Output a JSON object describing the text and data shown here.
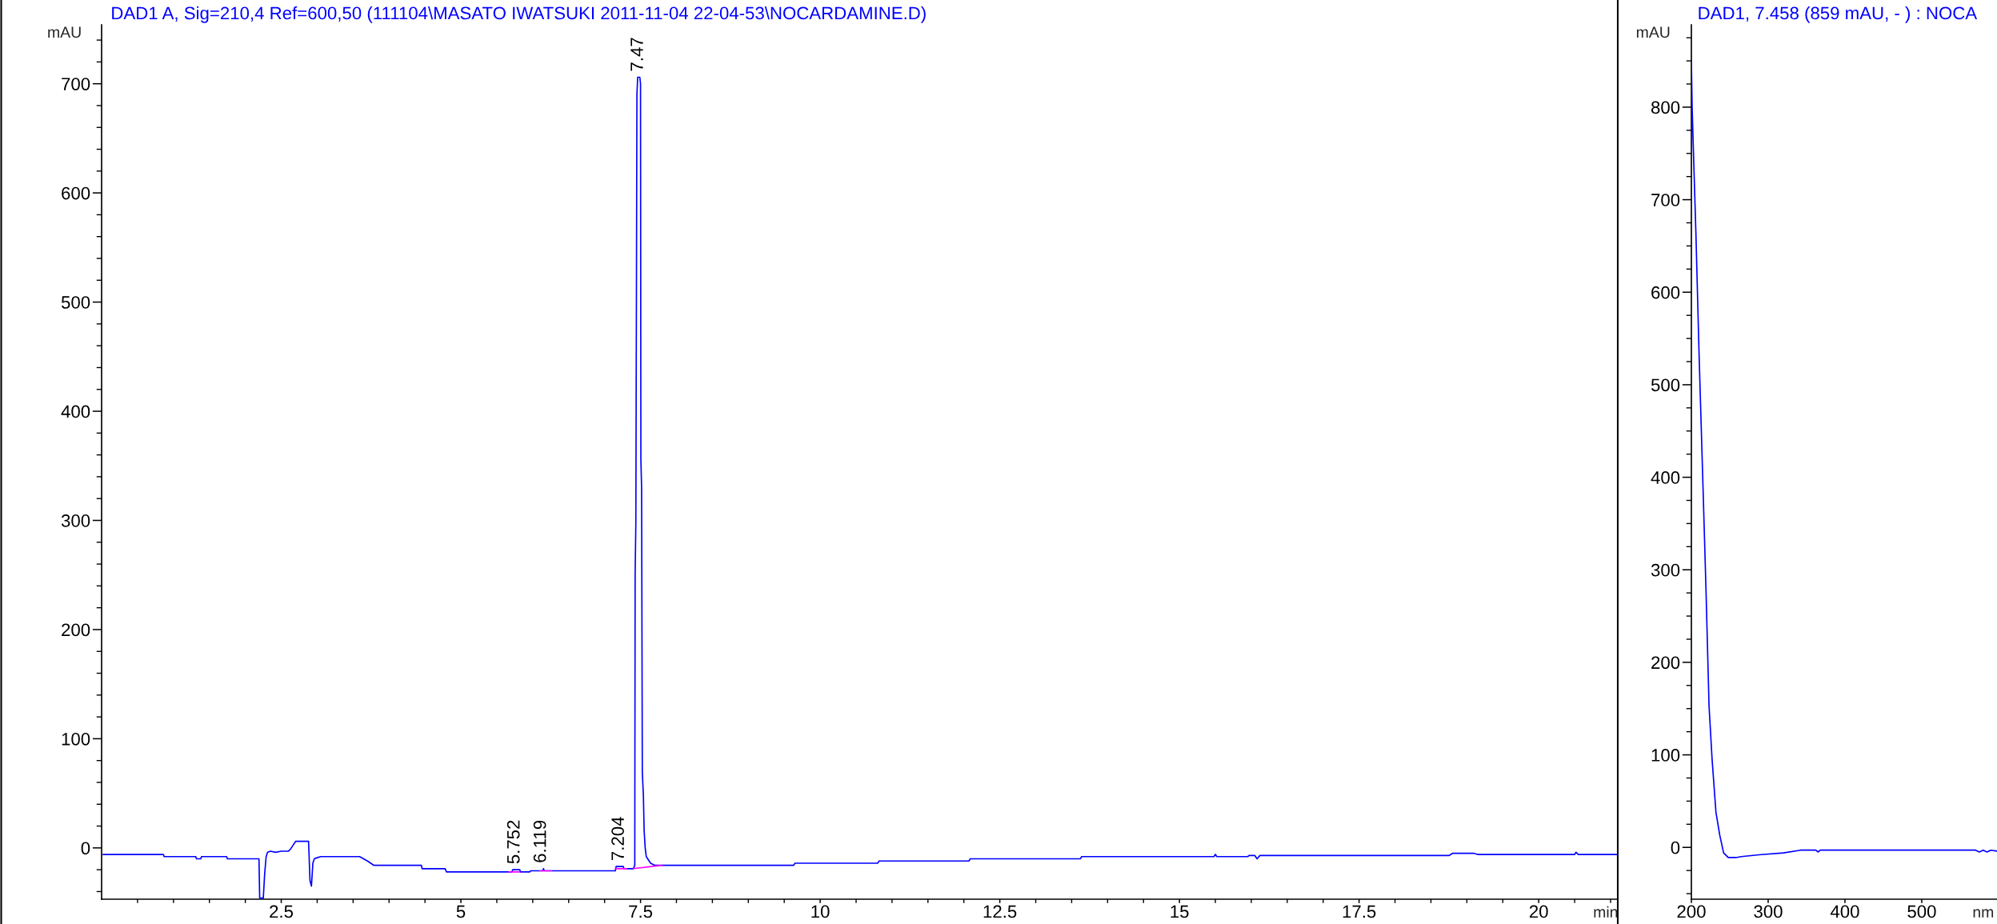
{
  "chart_data": [
    {
      "type": "line",
      "title": "DAD1 A, Sig=210,4 Ref=600,50 (111104\\MASATO IWATSUKI 2011-11-04 22-04-53\\NOCARDAMINE.D)",
      "xlabel": "min",
      "ylabel": "mAU",
      "series": [
        {
          "color": "#0000ff",
          "x": [
            0.02,
            0.86,
            0.87,
            1.31,
            1.32,
            1.38,
            1.39,
            1.74,
            1.75,
            2.19,
            2.2,
            2.25,
            2.27,
            2.29,
            2.31,
            2.35,
            2.42,
            2.5,
            2.6,
            2.63,
            2.66,
            2.7,
            2.88,
            2.9,
            2.92,
            2.94,
            2.96,
            3.0,
            3.05,
            3.1,
            3.59,
            3.7,
            3.79,
            4.45,
            4.46,
            4.78,
            4.8,
            5.07,
            5.08,
            5.71,
            5.72,
            5.82,
            5.83,
            5.96,
            5.97,
            6.14,
            6.15,
            6.16,
            7.15,
            7.16,
            7.26,
            7.27,
            7.4,
            7.42,
            7.425,
            7.435,
            7.45,
            7.46,
            7.49,
            7.5,
            7.505,
            7.515,
            7.525,
            7.54,
            7.55,
            7.565,
            7.58,
            7.64,
            7.7,
            9.63,
            9.65,
            10.8,
            10.82,
            12.07,
            12.09,
            13.62,
            13.64,
            15.48,
            15.5,
            15.52,
            15.95,
            15.97,
            16.05,
            16.08,
            16.12,
            18.75,
            18.8,
            19.1,
            19.15,
            19.3,
            20.5,
            20.52,
            20.55,
            21.1
          ],
          "values": [
            -6,
            -6,
            -8,
            -8,
            -10,
            -10,
            -8,
            -8,
            -10,
            -10,
            -46,
            -46,
            -23,
            -8,
            -4,
            -3,
            -4,
            -3,
            -3,
            -1,
            2,
            6,
            6,
            -30,
            -35,
            -14,
            -10,
            -9,
            -8,
            -8,
            -8,
            -12,
            -16,
            -16,
            -19,
            -19,
            -22,
            -22,
            -22,
            -22,
            -20,
            -20,
            -22,
            -22,
            -21,
            -21,
            -19,
            -21,
            -21,
            -17,
            -17,
            -19,
            -19,
            -16,
            250,
            298,
            690,
            706,
            706,
            700,
            356,
            330,
            69,
            48,
            16,
            0,
            -8,
            -14,
            -16,
            -16,
            -14,
            -14,
            -12,
            -12,
            -10,
            -10,
            -8,
            -8,
            -6,
            -8,
            -8,
            -7,
            -7,
            -10,
            -7,
            -7,
            -5,
            -5,
            -6,
            -6,
            -6,
            -4,
            -6,
            -6
          ]
        },
        {
          "color": "#ff00ff",
          "x": [
            5.67,
            5.82,
            5.95,
            6.1,
            6.26,
            6.7,
            7.15,
            7.31,
            7.35,
            7.4,
            7.8
          ],
          "values": [
            -22,
            -22,
            null,
            -21,
            -21,
            null,
            -19,
            -19,
            null,
            -19,
            -16
          ]
        }
      ],
      "xlim": [
        0,
        21.1
      ],
      "ylim": [
        -47,
        754
      ],
      "xticks": [
        {
          "value": 0.5,
          "label": null
        },
        {
          "value": 1,
          "label": null
        },
        {
          "value": 1.5,
          "label": null
        },
        {
          "value": 2,
          "label": null
        },
        2.5,
        {
          "value": 3,
          "label": null
        },
        {
          "value": 3.5,
          "label": null
        },
        {
          "value": 4,
          "label": null
        },
        {
          "value": 4.5,
          "label": null
        },
        5,
        {
          "value": 5.5,
          "label": null
        },
        {
          "value": 6,
          "label": null
        },
        {
          "value": 6.5,
          "label": null
        },
        {
          "value": 7,
          "label": null
        },
        7.5,
        {
          "value": 8,
          "label": null
        },
        {
          "value": 8.5,
          "label": null
        },
        {
          "value": 9,
          "label": null
        },
        {
          "value": 9.5,
          "label": null
        },
        10,
        {
          "value": 10.5,
          "label": null
        },
        {
          "value": 11,
          "label": null
        },
        {
          "value": 11.5,
          "label": null
        },
        {
          "value": 12,
          "label": null
        },
        12.5,
        {
          "value": 13,
          "label": null
        },
        {
          "value": 13.5,
          "label": null
        },
        {
          "value": 14,
          "label": null
        },
        {
          "value": 14.5,
          "label": null
        },
        15,
        {
          "value": 15.5,
          "label": null
        },
        {
          "value": 16,
          "label": null
        },
        {
          "value": 16.5,
          "label": null
        },
        {
          "value": 17,
          "label": null
        },
        17.5,
        {
          "value": 18,
          "label": null
        },
        {
          "value": 18.5,
          "label": null
        },
        {
          "value": 19,
          "label": null
        },
        {
          "value": 19.5,
          "label": null
        },
        20,
        {
          "value": 20.5,
          "label": null
        },
        {
          "value": 21,
          "label": null
        }
      ],
      "yticks": [
        {
          "value": -40,
          "label": null
        },
        {
          "value": -20,
          "label": null
        },
        0,
        {
          "value": 20,
          "label": null
        },
        {
          "value": 40,
          "label": null
        },
        {
          "value": 60,
          "label": null
        },
        {
          "value": 80,
          "label": null
        },
        100,
        {
          "value": 120,
          "label": null
        },
        {
          "value": 140,
          "label": null
        },
        {
          "value": 160,
          "label": null
        },
        {
          "value": 180,
          "label": null
        },
        200,
        {
          "value": 220,
          "label": null
        },
        {
          "value": 240,
          "label": null
        },
        {
          "value": 260,
          "label": null
        },
        {
          "value": 280,
          "label": null
        },
        300,
        {
          "value": 320,
          "label": null
        },
        {
          "value": 340,
          "label": null
        },
        {
          "value": 360,
          "label": null
        },
        {
          "value": 380,
          "label": null
        },
        400,
        {
          "value": 420,
          "label": null
        },
        {
          "value": 440,
          "label": null
        },
        {
          "value": 460,
          "label": null
        },
        {
          "value": 480,
          "label": null
        },
        500,
        {
          "value": 520,
          "label": null
        },
        {
          "value": 540,
          "label": null
        },
        {
          "value": 560,
          "label": null
        },
        {
          "value": 580,
          "label": null
        },
        600,
        {
          "value": 620,
          "label": null
        },
        {
          "value": 640,
          "label": null
        },
        {
          "value": 660,
          "label": null
        },
        {
          "value": 680,
          "label": null
        },
        700,
        {
          "value": 720,
          "label": null
        },
        {
          "value": 740,
          "label": null
        }
      ],
      "annotations": [
        {
          "text": "5.752",
          "x": 5.752,
          "y": -20
        },
        {
          "text": "6.119",
          "x": 6.119,
          "y": -19
        },
        {
          "text": "7.204",
          "x": 7.204,
          "y": -17
        },
        {
          "text": "7.47",
          "x": 7.47,
          "y": 706
        }
      ]
    },
    {
      "type": "line",
      "title": "DAD1, 7.458 (859 mAU, - ) : NOCA",
      "xlabel": "nm",
      "ylabel": "mAU",
      "series": [
        {
          "color": "#0000ff",
          "x": [
            200,
            201,
            202.3,
            206,
            210,
            215,
            219,
            223,
            227,
            232,
            237,
            242,
            248,
            258,
            265,
            288,
            320,
            342,
            362,
            365,
            368,
            570,
            575,
            580,
            585,
            590,
            598
          ],
          "values": [
            850,
            800,
            763,
            661,
            534,
            394,
            280,
            153,
            95,
            38,
            13,
            -6,
            -11,
            -11,
            -10,
            -8,
            -6,
            -3,
            -3,
            -5,
            -3,
            -3,
            -5,
            -3,
            -5,
            -3,
            -4
          ]
        }
      ],
      "xlim": [
        200,
        598
      ],
      "ylim": [
        -56,
        889
      ],
      "xticks": [
        200,
        300,
        400,
        500
      ],
      "yticks": [
        {
          "value": -50,
          "label": null
        },
        {
          "value": -25,
          "label": null
        },
        0,
        {
          "value": 25,
          "label": null
        },
        {
          "value": 50,
          "label": null
        },
        {
          "value": 75,
          "label": null
        },
        100,
        {
          "value": 125,
          "label": null
        },
        {
          "value": 150,
          "label": null
        },
        {
          "value": 175,
          "label": null
        },
        200,
        {
          "value": 225,
          "label": null
        },
        {
          "value": 250,
          "label": null
        },
        {
          "value": 275,
          "label": null
        },
        300,
        {
          "value": 325,
          "label": null
        },
        {
          "value": 350,
          "label": null
        },
        {
          "value": 375,
          "label": null
        },
        400,
        {
          "value": 425,
          "label": null
        },
        {
          "value": 450,
          "label": null
        },
        {
          "value": 475,
          "label": null
        },
        500,
        {
          "value": 525,
          "label": null
        },
        {
          "value": 550,
          "label": null
        },
        {
          "value": 575,
          "label": null
        },
        600,
        {
          "value": 625,
          "label": null
        },
        {
          "value": 650,
          "label": null
        },
        {
          "value": 675,
          "label": null
        },
        700,
        {
          "value": 725,
          "label": null
        },
        {
          "value": 750,
          "label": null
        },
        {
          "value": 775,
          "label": null
        },
        800,
        {
          "value": 825,
          "label": null
        },
        {
          "value": 850,
          "label": null
        },
        {
          "value": 875,
          "label": null
        }
      ]
    }
  ]
}
